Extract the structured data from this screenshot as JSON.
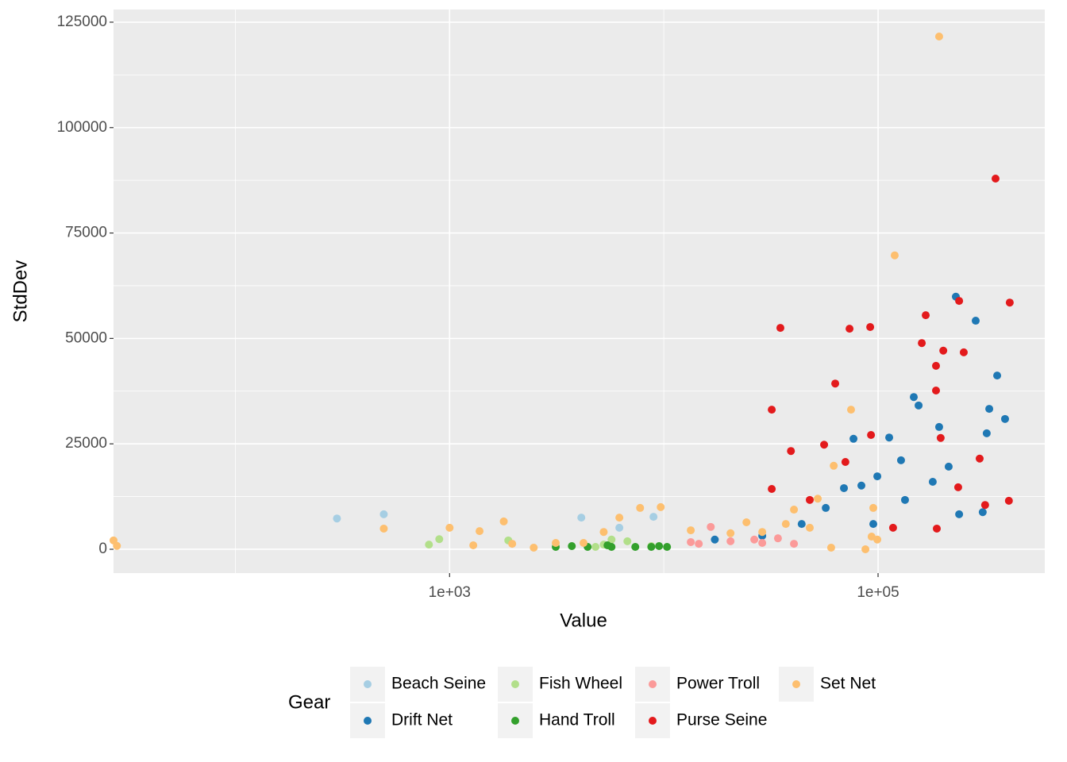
{
  "chart_data": {
    "type": "scatter",
    "x_label": "Value",
    "y_label": "StdDev",
    "x_log": true,
    "xlim": [
      27,
      600000
    ],
    "ylim": [
      -5650,
      128000
    ],
    "xticks": [
      {
        "value": 1000,
        "label": "1e+03"
      },
      {
        "value": 100000,
        "label": "1e+05"
      }
    ],
    "xminor": [
      100,
      10000
    ],
    "yticks": [
      0,
      25000,
      50000,
      75000,
      100000,
      125000
    ],
    "yminor": [
      12500,
      37500,
      62500,
      87500,
      112500
    ],
    "grid": true,
    "legend_title": "Gear",
    "legend_position": "bottom",
    "series": [
      {
        "name": "Beach Seine",
        "color": "#a6cee3",
        "x": [
          298,
          493,
          4120,
          8950,
          6200
        ],
        "values": [
          7300,
          8300,
          7500,
          7700,
          5100
        ]
      },
      {
        "name": "Drift Net",
        "color": "#1f78b4",
        "x": [
          230700,
          285600,
          359700,
          330400,
          391500,
          321500,
          146800,
          154600,
          192800,
          76800,
          112700,
          128000,
          99200,
          83600,
          69300,
          213600,
          239000,
          308000,
          180000,
          44000,
          28800,
          17300,
          57000,
          95000,
          133600
        ],
        "values": [
          59900,
          54200,
          41200,
          33300,
          30900,
          27500,
          36100,
          34100,
          29000,
          26200,
          26500,
          21100,
          17300,
          15100,
          14500,
          19600,
          8300,
          8800,
          16000,
          6000,
          3200,
          2300,
          9800,
          6000,
          11700
        ]
      },
      {
        "name": "Fish Wheel",
        "color": "#b2df8a",
        "x": [
          801,
          895,
          1880,
          5240,
          6760,
          8740,
          5700,
          4800
        ],
        "values": [
          1100,
          2400,
          2100,
          1100,
          1900,
          750,
          2300,
          560
        ]
      },
      {
        "name": "Hand Troll",
        "color": "#33a02c",
        "x": [
          3130,
          3720,
          4410,
          5700,
          7360,
          8740,
          10350,
          5460,
          9500
        ],
        "values": [
          560,
          750,
          560,
          560,
          560,
          560,
          560,
          940,
          750
        ]
      },
      {
        "name": "Power Troll",
        "color": "#fb9a99",
        "x": [
          14560,
          16560,
          20480,
          26440,
          34100,
          40500,
          28800,
          13360
        ],
        "values": [
          1300,
          5300,
          1900,
          2300,
          2600,
          1300,
          1500,
          1700
        ]
      },
      {
        "name": "Purse Seine",
        "color": "#e31a1c",
        "x": [
          353500,
          411800,
          239000,
          166900,
          251200,
          201600,
          35000,
          73600,
          91900,
          160000,
          186400,
          186400,
          31900,
          63100,
          39200,
          92700,
          298000,
          408000,
          316000,
          188000,
          117500,
          70400,
          196000,
          236600,
          31900,
          48000,
          56000
        ],
        "values": [
          87900,
          58500,
          58900,
          55500,
          46700,
          47100,
          52500,
          52300,
          52700,
          48900,
          43500,
          37650,
          33100,
          39300,
          23300,
          27100,
          21500,
          11500,
          10500,
          4900,
          5100,
          20700,
          26400,
          14700,
          14300,
          11700,
          24800
        ]
      },
      {
        "name": "Set Net",
        "color": "#fdbf6f",
        "x": [
          192800,
          119600,
          74800,
          62100,
          27,
          28,
          493,
          1000,
          1290,
          1380,
          1790,
          1960,
          2470,
          3130,
          6200,
          7750,
          9670,
          13360,
          24300,
          40500,
          52300,
          87300,
          93300,
          60400,
          48000,
          37100,
          28800,
          20480,
          99200,
          95000,
          5240,
          4220
        ],
        "values": [
          121600,
          69700,
          33100,
          19800,
          2100,
          800,
          4900,
          5100,
          940,
          4300,
          6600,
          1300,
          380,
          1500,
          7500,
          9800,
          10000,
          4500,
          6400,
          9400,
          12000,
          0,
          3000,
          380,
          5100,
          6000,
          4100,
          3800,
          2300,
          9800,
          4100,
          1500
        ]
      }
    ]
  }
}
